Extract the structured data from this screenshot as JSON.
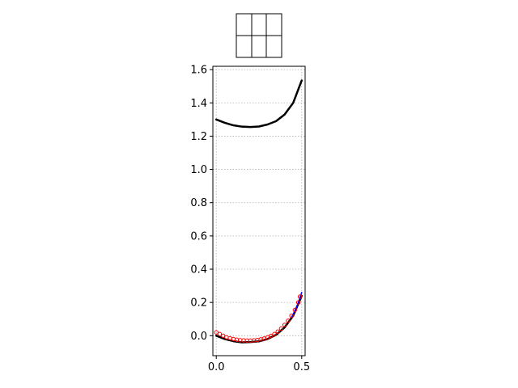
{
  "chart_data": {
    "type": "line",
    "title": "",
    "xlabel": "",
    "ylabel": "",
    "xlim": [
      -0.02,
      0.52
    ],
    "ylim": [
      -0.12,
      1.62
    ],
    "grid": true,
    "xticks": [
      0.0,
      0.5
    ],
    "xtick_labels": [
      "0.0",
      "0.5"
    ],
    "yticks": [
      0.0,
      0.2,
      0.4,
      0.6,
      0.8,
      1.0,
      1.2,
      1.4,
      1.6
    ],
    "ytick_labels": [
      "0.0",
      "0.2",
      "0.4",
      "0.6",
      "0.8",
      "1.0",
      "1.2",
      "1.4",
      "1.6"
    ],
    "series": [
      {
        "style": "line",
        "color": "#000000",
        "x": [
          0.0,
          0.05,
          0.1,
          0.15,
          0.2,
          0.25,
          0.3,
          0.35,
          0.4,
          0.45,
          0.5
        ],
        "y": [
          1.3,
          1.28,
          1.265,
          1.257,
          1.255,
          1.258,
          1.27,
          1.29,
          1.33,
          1.4,
          1.535
        ]
      },
      {
        "style": "line",
        "color": "#000000",
        "x": [
          0.0,
          0.05,
          0.1,
          0.15,
          0.2,
          0.25,
          0.3,
          0.35,
          0.4,
          0.45,
          0.5
        ],
        "y": [
          0.0,
          -0.02,
          -0.033,
          -0.04,
          -0.038,
          -0.034,
          -0.02,
          0.005,
          0.05,
          0.12,
          0.24
        ]
      },
      {
        "style": "line",
        "color": "#0000ff",
        "x": [
          0.44,
          0.47,
          0.5
        ],
        "y": [
          0.11,
          0.17,
          0.26
        ]
      },
      {
        "style": "markers",
        "color": "#ff0000",
        "x": [
          0.0,
          0.02,
          0.04,
          0.06,
          0.08,
          0.1,
          0.12,
          0.14,
          0.16,
          0.18,
          0.2,
          0.22,
          0.24,
          0.26,
          0.28,
          0.3,
          0.32,
          0.34,
          0.36,
          0.38,
          0.4,
          0.42,
          0.44,
          0.46,
          0.48,
          0.49
        ],
        "y": [
          0.02,
          0.01,
          0.0,
          -0.01,
          -0.015,
          -0.02,
          -0.024,
          -0.027,
          -0.028,
          -0.029,
          -0.029,
          -0.028,
          -0.026,
          -0.022,
          -0.017,
          -0.01,
          -0.001,
          0.01,
          0.025,
          0.043,
          0.065,
          0.09,
          0.12,
          0.155,
          0.2,
          0.235
        ]
      }
    ],
    "inset": {
      "type": "table",
      "rows": 2,
      "cols": 3
    }
  }
}
